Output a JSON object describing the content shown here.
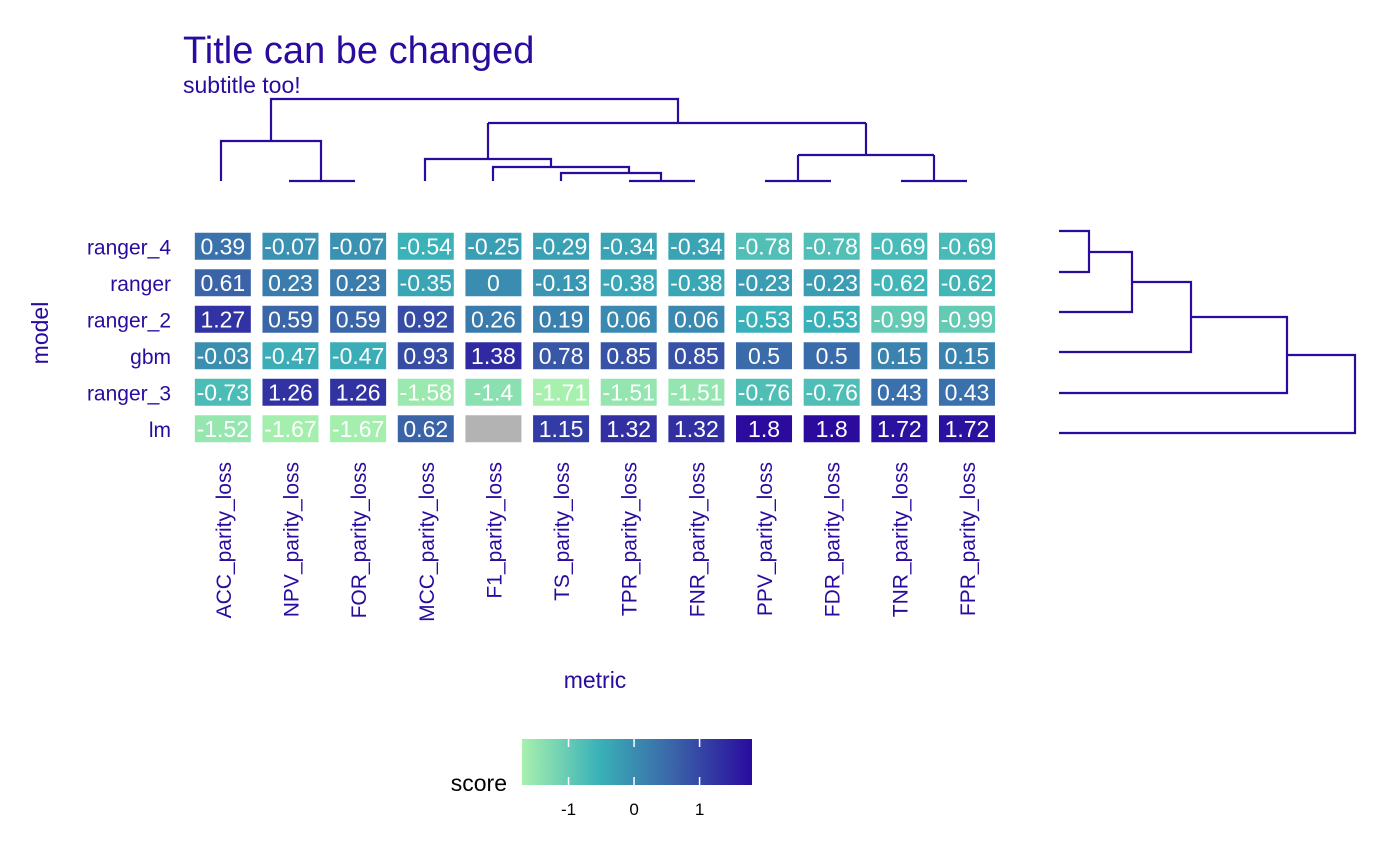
{
  "chart_data": {
    "type": "heatmap",
    "title": "Title can be changed",
    "subtitle": "subtitle too!",
    "xlabel": "metric",
    "ylabel": "model",
    "x_categories": [
      "ACC_parity_loss",
      "NPV_parity_loss",
      "FOR_parity_loss",
      "MCC_parity_loss",
      "F1_parity_loss",
      "TS_parity_loss",
      "TPR_parity_loss",
      "FNR_parity_loss",
      "PPV_parity_loss",
      "FDR_parity_loss",
      "TNR_parity_loss",
      "FPR_parity_loss"
    ],
    "y_categories": [
      "ranger_4",
      "ranger",
      "ranger_2",
      "gbm",
      "ranger_3",
      "lm"
    ],
    "values": [
      [
        0.39,
        -0.07,
        -0.07,
        -0.54,
        -0.25,
        -0.29,
        -0.34,
        -0.34,
        -0.78,
        -0.78,
        -0.69,
        -0.69
      ],
      [
        0.61,
        0.23,
        0.23,
        -0.35,
        0,
        -0.13,
        -0.38,
        -0.38,
        -0.23,
        -0.23,
        -0.62,
        -0.62
      ],
      [
        1.27,
        0.59,
        0.59,
        0.92,
        0.26,
        0.19,
        0.06,
        0.06,
        -0.53,
        -0.53,
        -0.99,
        -0.99
      ],
      [
        -0.03,
        -0.47,
        -0.47,
        0.93,
        1.38,
        0.78,
        0.85,
        0.85,
        0.5,
        0.5,
        0.15,
        0.15
      ],
      [
        -0.73,
        1.26,
        1.26,
        -1.58,
        -1.4,
        -1.71,
        -1.51,
        -1.51,
        -0.76,
        -0.76,
        0.43,
        0.43
      ],
      [
        -1.52,
        -1.67,
        -1.67,
        0.62,
        null,
        1.15,
        1.32,
        1.32,
        1.8,
        1.8,
        1.72,
        1.72
      ]
    ],
    "cell_labels": [
      [
        "0.39",
        "-0.07",
        "-0.07",
        "-0.54",
        "-0.25",
        "-0.29",
        "-0.34",
        "-0.34",
        "-0.78",
        "-0.78",
        "-0.69",
        "-0.69"
      ],
      [
        "0.61",
        "0.23",
        "0.23",
        "-0.35",
        "0",
        "-0.13",
        "-0.38",
        "-0.38",
        "-0.23",
        "-0.23",
        "-0.62",
        "-0.62"
      ],
      [
        "1.27",
        "0.59",
        "0.59",
        "0.92",
        "0.26",
        "0.19",
        "0.06",
        "0.06",
        "-0.53",
        "-0.53",
        "-0.99",
        "-0.99"
      ],
      [
        "-0.03",
        "-0.47",
        "-0.47",
        "0.93",
        "1.38",
        "0.78",
        "0.85",
        "0.85",
        "0.5",
        "0.5",
        "0.15",
        "0.15"
      ],
      [
        "-0.73",
        "1.26",
        "1.26",
        "-1.58",
        "-1.4",
        "-1.71",
        "-1.51",
        "-1.51",
        "-0.76",
        "-0.76",
        "0.43",
        "0.43"
      ],
      [
        "-1.52",
        "-1.67",
        "-1.67",
        "0.62",
        "",
        "1.15",
        "1.32",
        "1.32",
        "1.8",
        "1.8",
        "1.72",
        "1.72"
      ]
    ],
    "legend": {
      "title": "score",
      "position": "bottom",
      "ticks": [
        -1,
        0,
        1
      ],
      "tick_labels": [
        "-1",
        "0",
        "1"
      ],
      "range": [
        -1.71,
        1.8
      ],
      "colors": [
        "#a8f0ae",
        "#3ab2b8",
        "#3a62a8",
        "#2a0b9e"
      ]
    },
    "na_color": "#b3b3b3",
    "text_color": "#2a0b9e",
    "grid": false
  }
}
